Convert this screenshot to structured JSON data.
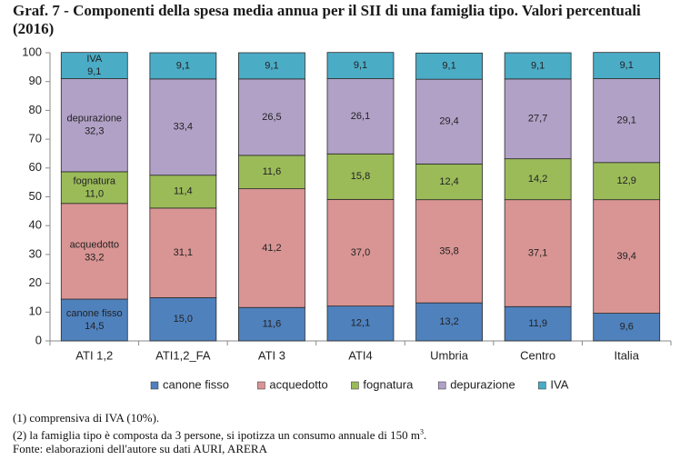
{
  "title": "Graf. 7 - Componenti della spesa media annua per il SII di una famiglia tipo. Valori percentuali (2016)",
  "notes": {
    "note1": "(1) comprensiva di IVA (10%).",
    "note2": "(2) la famiglia tipo è composta da 3 persone, si ipotizza un consumo annuale di 150 m",
    "note2_sup": "3",
    "note2_end": ".",
    "source": "Fonte: elaborazioni dell'autore su dati AURI, ARERA"
  },
  "chart_data": {
    "type": "bar",
    "stacked": true,
    "categories": [
      "ATI 1,2",
      "ATI1,2_FA",
      "ATI 3",
      "ATI4",
      "Umbria",
      "Centro",
      "Italia"
    ],
    "series": [
      {
        "name": "canone fisso",
        "color": "#4f81bd",
        "values": [
          14.5,
          15.0,
          11.6,
          12.1,
          13.2,
          11.9,
          9.6
        ],
        "labels": [
          "14,5",
          "15,0",
          "11,6",
          "12,1",
          "13,2",
          "11,9",
          "9,6"
        ]
      },
      {
        "name": "acquedotto",
        "color": "#d99594",
        "values": [
          33.2,
          31.1,
          41.2,
          37.0,
          35.8,
          37.1,
          39.4
        ],
        "labels": [
          "33,2",
          "31,1",
          "41,2",
          "37,0",
          "35,8",
          "37,1",
          "39,4"
        ]
      },
      {
        "name": "fognatura",
        "color": "#9bbb59",
        "values": [
          11.0,
          11.4,
          11.6,
          15.8,
          12.4,
          14.2,
          12.9
        ],
        "labels": [
          "11,0",
          "11,4",
          "11,6",
          "15,8",
          "12,4",
          "14,2",
          "12,9"
        ]
      },
      {
        "name": "depurazione",
        "color": "#b2a1c7",
        "values": [
          32.3,
          33.4,
          26.5,
          26.1,
          29.4,
          27.7,
          29.1
        ],
        "labels": [
          "32,3",
          "33,4",
          "26,5",
          "26,1",
          "29,4",
          "27,7",
          "29,1"
        ]
      },
      {
        "name": "IVA",
        "color": "#4bacc6",
        "values": [
          9.1,
          9.1,
          9.1,
          9.1,
          9.1,
          9.1,
          9.1
        ],
        "labels": [
          "9,1",
          "9,1",
          "9,1",
          "9,1",
          "9,1",
          "9,1",
          "9,1"
        ]
      }
    ],
    "first_bar_series_names": [
      "canone fisso",
      "acquedotto",
      "fognatura",
      "depurazione",
      "IVA"
    ],
    "ylim": [
      0,
      100
    ],
    "yticks": [
      "0",
      "10",
      "20",
      "30",
      "40",
      "50",
      "60",
      "70",
      "80",
      "90",
      "100"
    ],
    "grid": false,
    "legend_position": "bottom"
  }
}
